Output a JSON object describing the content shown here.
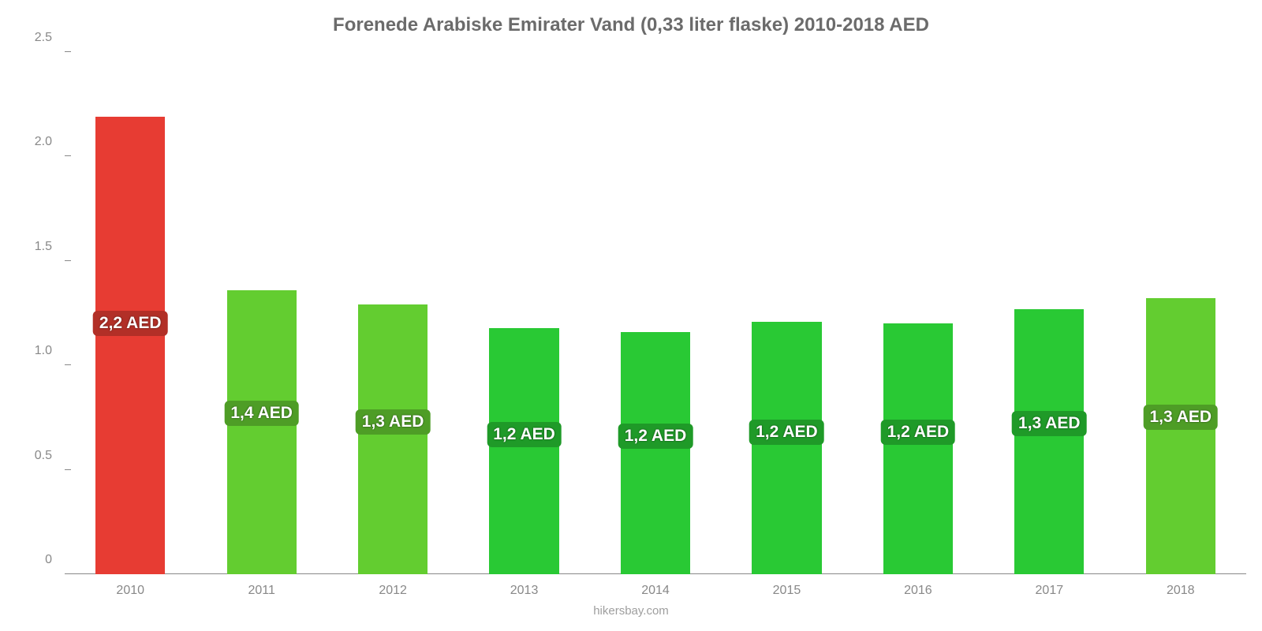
{
  "chart": {
    "type": "bar",
    "title": "Forenede Arabiske Emirater Vand (0,33 liter flaske) 2010-2018 AED",
    "title_fontsize": 24,
    "title_color": "#6b6b6b",
    "background_color": "#ffffff",
    "source": "hikersbay.com",
    "source_fontsize": 15,
    "source_color": "#9e9e9e",
    "axis_color": "#888888",
    "tick_label_color": "#888888",
    "tick_fontsize": 16,
    "ylim": [
      0,
      2.5
    ],
    "yticks": [
      0,
      0.5,
      1.0,
      1.5,
      2.0,
      2.5
    ],
    "ytick_labels": [
      "0",
      "0.5",
      "1.0",
      "1.5",
      "2.0",
      "2.5"
    ],
    "categories": [
      "2010",
      "2011",
      "2012",
      "2013",
      "2014",
      "2015",
      "2016",
      "2017",
      "2018"
    ],
    "values": [
      2.19,
      1.36,
      1.29,
      1.18,
      1.16,
      1.21,
      1.2,
      1.27,
      1.32
    ],
    "bar_colors": [
      "#e73c33",
      "#63cd30",
      "#63cd30",
      "#29c934",
      "#29c934",
      "#29c934",
      "#29c934",
      "#29c934",
      "#63cd30"
    ],
    "bar_width": 0.53,
    "value_labels": [
      "2,2 AED",
      "1,4 AED",
      "1,3 AED",
      "1,2 AED",
      "1,2 AED",
      "1,2 AED",
      "1,2 AED",
      "1,3 AED",
      "1,3 AED"
    ],
    "value_label_fontsize": 21,
    "value_label_bg_colors": [
      "#b22f27",
      "#4e9d26",
      "#4e9d26",
      "#1f9a28",
      "#1f9a28",
      "#1f9a28",
      "#1f9a28",
      "#1f9a28",
      "#4e9d26"
    ],
    "value_label_y_offsets": [
      1.2,
      0.77,
      0.73,
      0.67,
      0.66,
      0.68,
      0.68,
      0.72,
      0.75
    ]
  }
}
